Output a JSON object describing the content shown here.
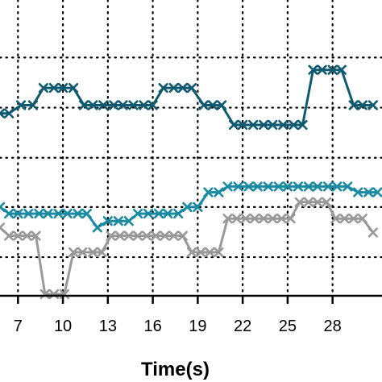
{
  "chart_data": {
    "type": "line",
    "title": "",
    "xlabel": "Time(s)",
    "ylabel": "",
    "xlim": [
      5.8,
      31.3
    ],
    "ylim": [
      0,
      360
    ],
    "x_ticks": [
      7,
      10,
      13,
      16,
      19,
      22,
      25,
      28
    ],
    "y_grid": [
      47,
      108,
      168,
      229,
      290
    ],
    "grid": "dotted",
    "legend": "none",
    "marker": "x",
    "series": [
      {
        "color": "#0f5a70",
        "points": [
          [
            5.8,
            222
          ],
          [
            6.4,
            222
          ],
          [
            7.2,
            232
          ],
          [
            8.0,
            232
          ],
          [
            8.7,
            253
          ],
          [
            9.4,
            253
          ],
          [
            10.0,
            253
          ],
          [
            10.7,
            253
          ],
          [
            11.4,
            232
          ],
          [
            12.0,
            232
          ],
          [
            12.7,
            232
          ],
          [
            13.4,
            232
          ],
          [
            14.0,
            232
          ],
          [
            14.7,
            232
          ],
          [
            15.4,
            232
          ],
          [
            16.0,
            232
          ],
          [
            16.7,
            253
          ],
          [
            17.4,
            253
          ],
          [
            18.0,
            253
          ],
          [
            18.6,
            253
          ],
          [
            19.4,
            232
          ],
          [
            20.0,
            232
          ],
          [
            20.6,
            232
          ],
          [
            21.4,
            208
          ],
          [
            22.0,
            208
          ],
          [
            22.7,
            208
          ],
          [
            23.4,
            208
          ],
          [
            24.0,
            208
          ],
          [
            24.7,
            208
          ],
          [
            25.4,
            208
          ],
          [
            26.0,
            208
          ],
          [
            26.7,
            275
          ],
          [
            27.3,
            275
          ],
          [
            28.0,
            275
          ],
          [
            28.6,
            275
          ],
          [
            29.4,
            232
          ],
          [
            30.0,
            232
          ],
          [
            30.7,
            232
          ]
        ]
      },
      {
        "color": "#1a8aa3",
        "points": [
          [
            5.8,
            108
          ],
          [
            6.4,
            100
          ],
          [
            7.0,
            100
          ],
          [
            7.7,
            100
          ],
          [
            8.4,
            100
          ],
          [
            9.0,
            100
          ],
          [
            9.7,
            100
          ],
          [
            10.3,
            100
          ],
          [
            11.0,
            100
          ],
          [
            11.6,
            100
          ],
          [
            12.3,
            83
          ],
          [
            13.0,
            91
          ],
          [
            13.7,
            91
          ],
          [
            14.4,
            91
          ],
          [
            15.0,
            100
          ],
          [
            15.7,
            100
          ],
          [
            16.4,
            100
          ],
          [
            17.0,
            100
          ],
          [
            17.7,
            100
          ],
          [
            18.3,
            108
          ],
          [
            19.0,
            108
          ],
          [
            19.7,
            126
          ],
          [
            20.4,
            126
          ],
          [
            21.0,
            133
          ],
          [
            21.7,
            133
          ],
          [
            22.4,
            133
          ],
          [
            23.0,
            133
          ],
          [
            23.7,
            133
          ],
          [
            24.4,
            133
          ],
          [
            25.0,
            133
          ],
          [
            25.7,
            133
          ],
          [
            26.4,
            133
          ],
          [
            27.0,
            133
          ],
          [
            27.7,
            133
          ],
          [
            28.3,
            133
          ],
          [
            29.0,
            133
          ],
          [
            29.7,
            126
          ],
          [
            30.4,
            126
          ],
          [
            31.0,
            126
          ]
        ]
      },
      {
        "color": "#999999",
        "points": [
          [
            5.8,
            83
          ],
          [
            6.4,
            73
          ],
          [
            7.0,
            73
          ],
          [
            7.6,
            73
          ],
          [
            8.2,
            73
          ],
          [
            8.8,
            2
          ],
          [
            9.4,
            2
          ],
          [
            10.1,
            2
          ],
          [
            10.7,
            53
          ],
          [
            11.3,
            53
          ],
          [
            12.0,
            53
          ],
          [
            12.6,
            53
          ],
          [
            13.2,
            73
          ],
          [
            13.8,
            73
          ],
          [
            14.4,
            73
          ],
          [
            15.0,
            73
          ],
          [
            15.6,
            73
          ],
          [
            16.2,
            73
          ],
          [
            16.8,
            73
          ],
          [
            17.4,
            73
          ],
          [
            18.0,
            73
          ],
          [
            18.6,
            53
          ],
          [
            19.2,
            53
          ],
          [
            19.8,
            53
          ],
          [
            20.4,
            53
          ],
          [
            21.0,
            94
          ],
          [
            21.6,
            94
          ],
          [
            22.2,
            94
          ],
          [
            22.8,
            94
          ],
          [
            23.4,
            94
          ],
          [
            24.0,
            94
          ],
          [
            24.6,
            94
          ],
          [
            25.2,
            94
          ],
          [
            25.8,
            114
          ],
          [
            26.4,
            114
          ],
          [
            27.0,
            114
          ],
          [
            27.6,
            114
          ],
          [
            28.2,
            94
          ],
          [
            28.8,
            94
          ],
          [
            29.4,
            94
          ],
          [
            30.0,
            94
          ],
          [
            30.7,
            77
          ]
        ]
      }
    ]
  }
}
